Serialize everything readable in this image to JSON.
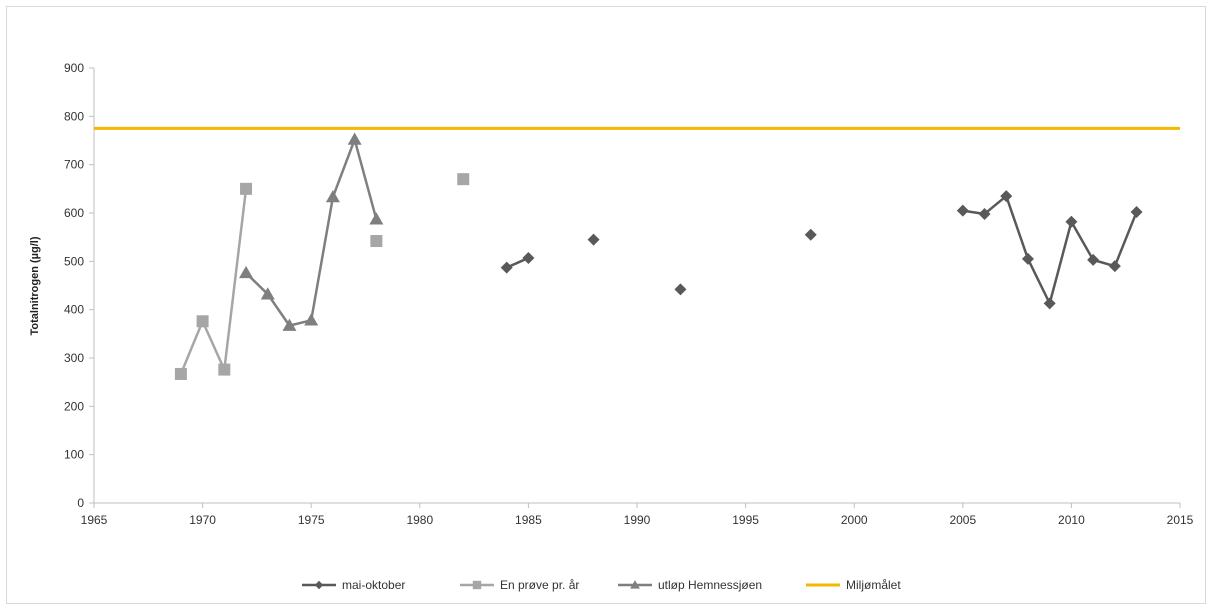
{
  "chart_data": {
    "type": "line",
    "title": "",
    "xlabel": "",
    "ylabel": "Totalnitrogen (µg/l)",
    "xlim": [
      1965,
      2015
    ],
    "ylim": [
      0,
      900
    ],
    "xticks": [
      1965,
      1970,
      1975,
      1980,
      1985,
      1990,
      1995,
      2000,
      2005,
      2010,
      2015
    ],
    "yticks": [
      0,
      100,
      200,
      300,
      400,
      500,
      600,
      700,
      800,
      900
    ],
    "grid": false,
    "legend_position": "bottom",
    "series": [
      {
        "name": "mai-oktober",
        "marker": "diamond",
        "color": "#595959",
        "points": [
          {
            "x": 1984,
            "y": 487
          },
          {
            "x": 1985,
            "y": 507
          },
          {
            "x": 1988,
            "y": 545
          },
          {
            "x": 1992,
            "y": 442
          },
          {
            "x": 1998,
            "y": 555
          },
          {
            "x": 2005,
            "y": 605
          },
          {
            "x": 2006,
            "y": 598
          },
          {
            "x": 2007,
            "y": 635
          },
          {
            "x": 2008,
            "y": 505
          },
          {
            "x": 2009,
            "y": 413
          },
          {
            "x": 2010,
            "y": 582
          },
          {
            "x": 2011,
            "y": 503
          },
          {
            "x": 2012,
            "y": 490
          },
          {
            "x": 2013,
            "y": 602
          }
        ],
        "segments": [
          [
            0,
            1
          ],
          [
            5,
            13
          ]
        ]
      },
      {
        "name": "En prøve pr. år",
        "marker": "square",
        "color": "#a6a6a6",
        "points": [
          {
            "x": 1969,
            "y": 267
          },
          {
            "x": 1970,
            "y": 376
          },
          {
            "x": 1971,
            "y": 276
          },
          {
            "x": 1972,
            "y": 650
          },
          {
            "x": 1978,
            "y": 542
          },
          {
            "x": 1982,
            "y": 670
          }
        ],
        "segments": [
          [
            0,
            3
          ]
        ]
      },
      {
        "name": "utløp Hemnessjøen",
        "marker": "triangle",
        "color": "#7f7f7f",
        "points": [
          {
            "x": 1972,
            "y": 476
          },
          {
            "x": 1973,
            "y": 432
          },
          {
            "x": 1974,
            "y": 367
          },
          {
            "x": 1975,
            "y": 378
          },
          {
            "x": 1976,
            "y": 633
          },
          {
            "x": 1977,
            "y": 752
          },
          {
            "x": 1978,
            "y": 587
          }
        ],
        "segments": [
          [
            0,
            6
          ]
        ]
      },
      {
        "name": "Miljømålet",
        "marker": "none",
        "color": "#f5b800",
        "points": [
          {
            "x": 1965,
            "y": 775
          },
          {
            "x": 2015,
            "y": 775
          }
        ],
        "segments": [
          [
            0,
            1
          ]
        ]
      }
    ]
  }
}
